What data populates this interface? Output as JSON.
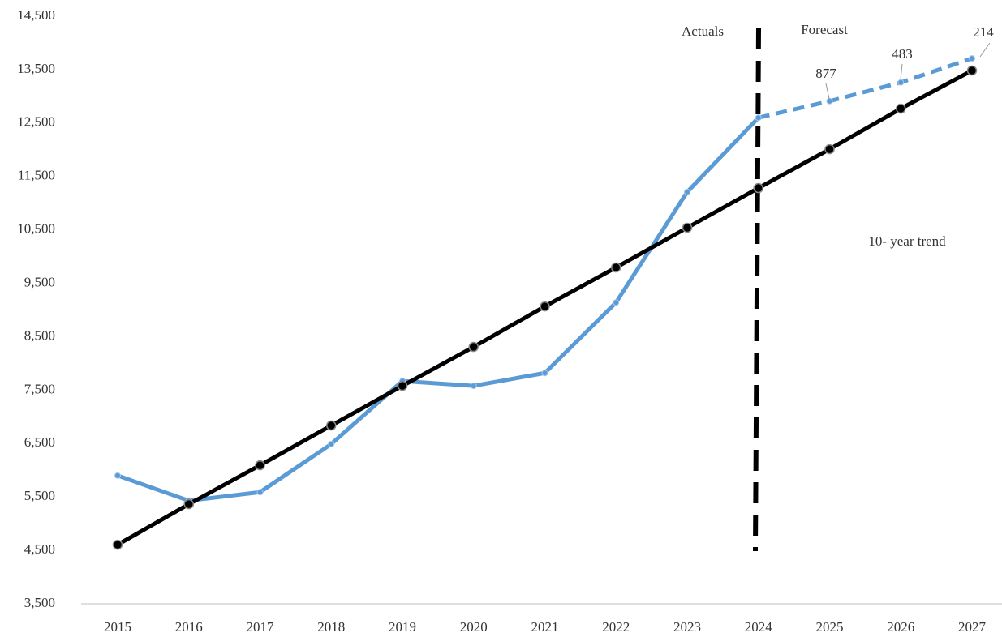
{
  "chart_data": {
    "type": "line",
    "categories": [
      "2015",
      "2016",
      "2017",
      "2018",
      "2019",
      "2020",
      "2021",
      "2022",
      "2023",
      "2024",
      "2025",
      "2026",
      "2027"
    ],
    "series": [
      {
        "color": "#5b9bd5",
        "style": "solid",
        "values": [
          5900,
          5430,
          5590,
          6490,
          7670,
          7580,
          7820,
          9140,
          11210,
          12600,
          null,
          null,
          null
        ]
      },
      {
        "color": "#5b9bd5",
        "style": "dashed",
        "values": [
          null,
          null,
          null,
          null,
          null,
          null,
          null,
          null,
          null,
          12600,
          12910,
          13260,
          13710
        ]
      },
      {
        "color": "#000000",
        "style": "solid",
        "values": [
          4606,
          5365,
          6093,
          6837,
          7580,
          8309,
          9067,
          9796,
          10540,
          11283,
          12010,
          12770,
          13483
        ]
      }
    ],
    "ylim": [
      3500,
      14500
    ],
    "yticks": [
      {
        "value": 3500,
        "label": "3,500"
      },
      {
        "value": 4500,
        "label": "4,500"
      },
      {
        "value": 5500,
        "label": "5,500"
      },
      {
        "value": 6500,
        "label": "6,500"
      },
      {
        "value": 7500,
        "label": "7,500"
      },
      {
        "value": 8500,
        "label": "8,500"
      },
      {
        "value": 9500,
        "label": "9,500"
      },
      {
        "value": 10500,
        "label": "10,500"
      },
      {
        "value": 11500,
        "label": "11,500"
      },
      {
        "value": 12500,
        "label": "12,500"
      },
      {
        "value": 13500,
        "label": "13,500"
      },
      {
        "value": 14500,
        "label": "14,500"
      }
    ],
    "grid": false,
    "annotations": [
      "Actuals",
      "Forecast",
      "10- year trend",
      "877",
      "483",
      "214"
    ]
  }
}
